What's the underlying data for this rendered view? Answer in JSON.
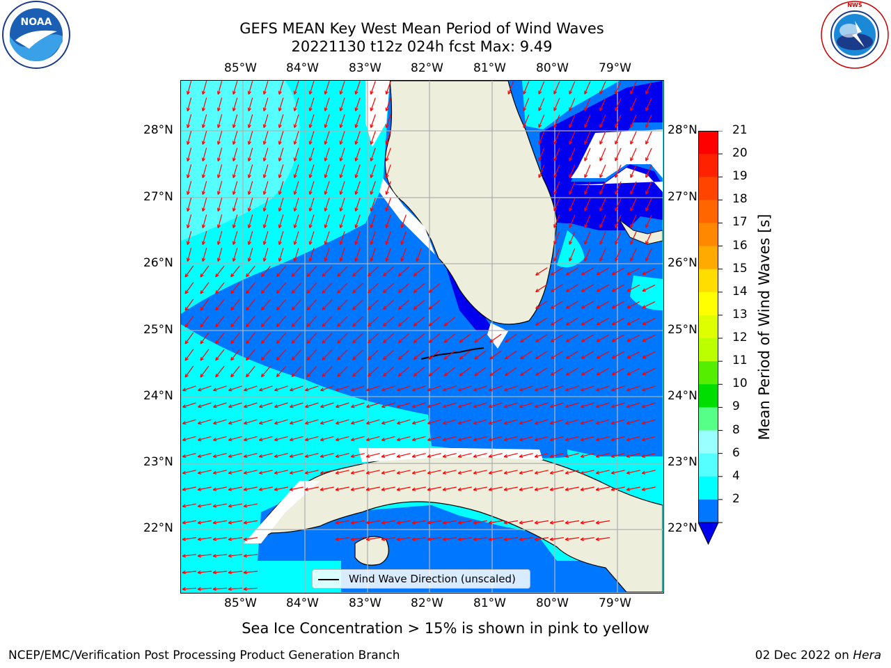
{
  "title_line1": "GEFS MEAN Key West Mean Period of Wind Waves",
  "title_line2": "20221130 t12z 024h fcst   Max: 9.49",
  "lon_ticks": [
    "85°W",
    "84°W",
    "83°W",
    "82°W",
    "81°W",
    "80°W",
    "79°W"
  ],
  "lat_ticks": [
    "28°N",
    "27°N",
    "26°N",
    "25°N",
    "24°N",
    "23°N",
    "22°N"
  ],
  "legend_label": "Wind Wave Direction (unscaled)",
  "colorbar": {
    "label": "Mean Period of Wind Waves [s]",
    "ticks": [
      "21",
      "20",
      "19",
      "18",
      "17",
      "16",
      "15",
      "14",
      "13",
      "12",
      "11",
      "10",
      "9",
      "8",
      "6",
      "4",
      "2"
    ],
    "colors": [
      "#ff0000",
      "#ff2200",
      "#ff4400",
      "#ff6600",
      "#ff8800",
      "#ffaa00",
      "#ffdd00",
      "#ffff00",
      "#ddff00",
      "#bbff00",
      "#55ee00",
      "#00dd00",
      "#55ff88",
      "#99ffff",
      "#55ffff",
      "#00ffff",
      "#0077ff"
    ],
    "under_color": "#0000ee"
  },
  "colors": {
    "land": "#eeeedd",
    "water_cyan": "#00ffff",
    "water_light": "#55ffff",
    "water_blue": "#0077ff",
    "water_dark": "#0000ee",
    "arrow": "#ff0000",
    "grid": "#b0b0b0"
  },
  "subnote": "Sea Ice Concentration > 15% is shown in pink to yellow",
  "credit": "NCEP/EMC/Verification Post Processing Product Generation Branch",
  "date_text": "02 Dec 2022 on",
  "date_host": "Hera",
  "logos": {
    "noaa_text": "NOAA",
    "noaa_ring": "NATIONAL OCEANIC AND ATMOSPHERIC ADMINISTRATION · U.S. DEPARTMENT OF COMMERCE",
    "nws_ring": "NATIONAL WEATHER SERVICE"
  }
}
